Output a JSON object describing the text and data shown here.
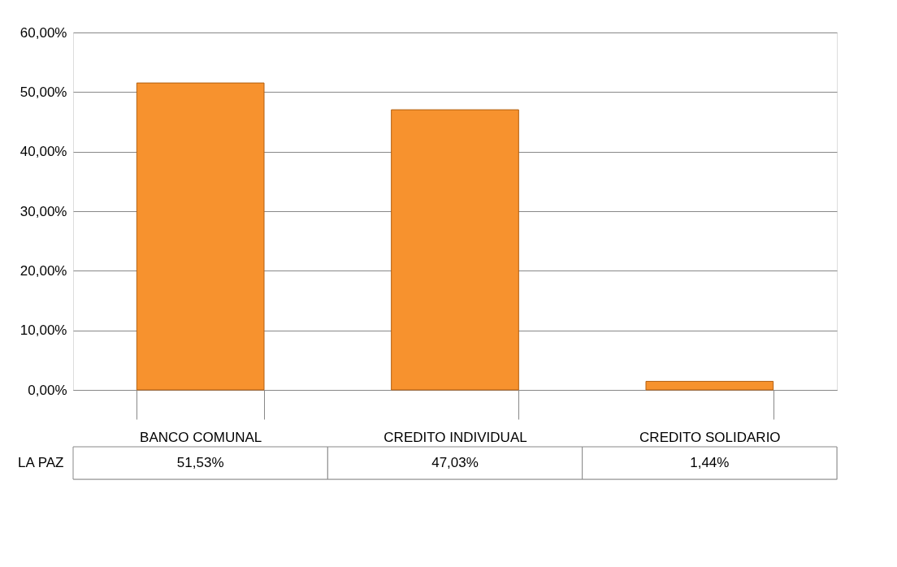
{
  "chart_data": {
    "type": "bar",
    "categories": [
      "BANCO COMUNAL",
      "CREDITO INDIVIDUAL",
      "CREDITO SOLIDARIO"
    ],
    "series": [
      {
        "name": "LA PAZ",
        "color": "#f7922e",
        "values": [
          51.53,
          47.03,
          1.44
        ],
        "value_labels": [
          "51,53%",
          "47,03%",
          "1,44%"
        ]
      }
    ],
    "ylim": [
      0,
      60
    ],
    "yticks": [
      {
        "value": 0,
        "label": "0,00%"
      },
      {
        "value": 10,
        "label": "10,00%"
      },
      {
        "value": 20,
        "label": "20,00%"
      },
      {
        "value": 30,
        "label": "30,00%"
      },
      {
        "value": 40,
        "label": "40,00%"
      },
      {
        "value": 50,
        "label": "50,00%"
      },
      {
        "value": 60,
        "label": "60,00%"
      }
    ],
    "grid": "y"
  }
}
